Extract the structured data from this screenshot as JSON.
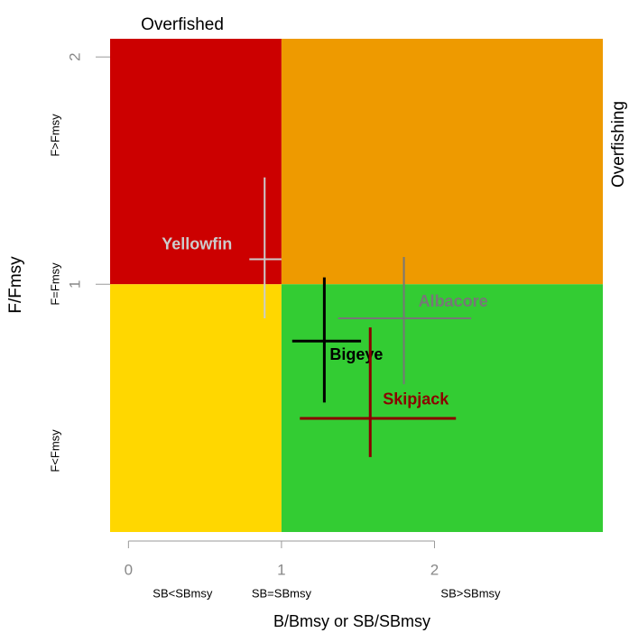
{
  "chart_data": {
    "type": "kobe",
    "top_label": "Overfished",
    "right_label": "Overfishing",
    "x_label": "B/Bmsy or SB/SBmsy",
    "y_label": "F/Fmsy",
    "x_zone_labels": [
      "SB<SBmsy",
      "SB=SBmsy",
      "SB>SBmsy"
    ],
    "y_zone_labels": [
      "F<Fmsy",
      "F=Fmsy",
      "F>Fmsy"
    ],
    "xlim": [
      -0.12,
      3.1
    ],
    "ylim": [
      -0.09,
      2.08
    ],
    "xticks": [
      0,
      1,
      2
    ],
    "yticks": [
      1,
      2
    ],
    "x_split": 1,
    "y_split": 1,
    "quadrant_colors": {
      "top_left": "#cc0000",
      "top_right": "#ee9a00",
      "bottom_left": "#ffd700",
      "bottom_right": "#33cc33"
    },
    "series": [
      {
        "name": "Yellowfin",
        "color": "#cccccc",
        "x": 0.89,
        "y": 1.11,
        "x_range": [
          0.79,
          1.0
        ],
        "y_range": [
          0.85,
          1.47
        ]
      },
      {
        "name": "Albacore",
        "color": "#777777",
        "x": 1.8,
        "y": 0.85,
        "x_range": [
          1.37,
          2.24
        ],
        "y_range": [
          0.56,
          1.12
        ]
      },
      {
        "name": "Bigeye",
        "color": "#000000",
        "x": 1.28,
        "y": 0.75,
        "x_range": [
          1.07,
          1.52
        ],
        "y_range": [
          0.48,
          1.03
        ]
      },
      {
        "name": "Skipjack",
        "color": "#8b0000",
        "x": 1.58,
        "y": 0.41,
        "x_range": [
          1.12,
          2.14
        ],
        "y_range": [
          0.24,
          0.81
        ]
      }
    ]
  }
}
